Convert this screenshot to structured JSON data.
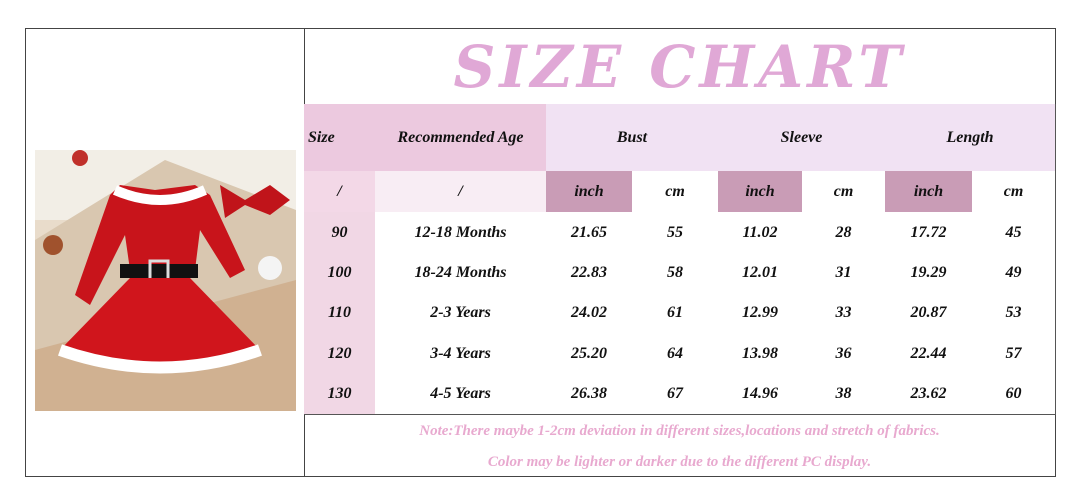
{
  "title": "SIZE CHART",
  "table": {
    "header": [
      "Size",
      "Recommended Age",
      "Bust",
      "Sleeve",
      "Length"
    ],
    "subheader": [
      "/",
      "/",
      "inch",
      "cm",
      "inch",
      "cm",
      "inch",
      "cm"
    ],
    "rows": [
      [
        "90",
        "12-18 Months",
        "21.65",
        "55",
        "11.02",
        "28",
        "17.72",
        "45"
      ],
      [
        "100",
        "18-24 Months",
        "22.83",
        "58",
        "12.01",
        "31",
        "19.29",
        "49"
      ],
      [
        "110",
        "2-3 Years",
        "24.02",
        "61",
        "12.99",
        "33",
        "20.87",
        "53"
      ],
      [
        "120",
        "3-4 Years",
        "25.20",
        "64",
        "13.98",
        "36",
        "22.44",
        "57"
      ],
      [
        "130",
        "4-5 Years",
        "26.38",
        "67",
        "14.96",
        "38",
        "23.62",
        "60"
      ]
    ]
  },
  "notes": [
    "Note:There maybe 1-2cm deviation in different sizes,locations and stretch of fabrics.",
    "Color may be lighter or darker due to the different PC display."
  ]
}
